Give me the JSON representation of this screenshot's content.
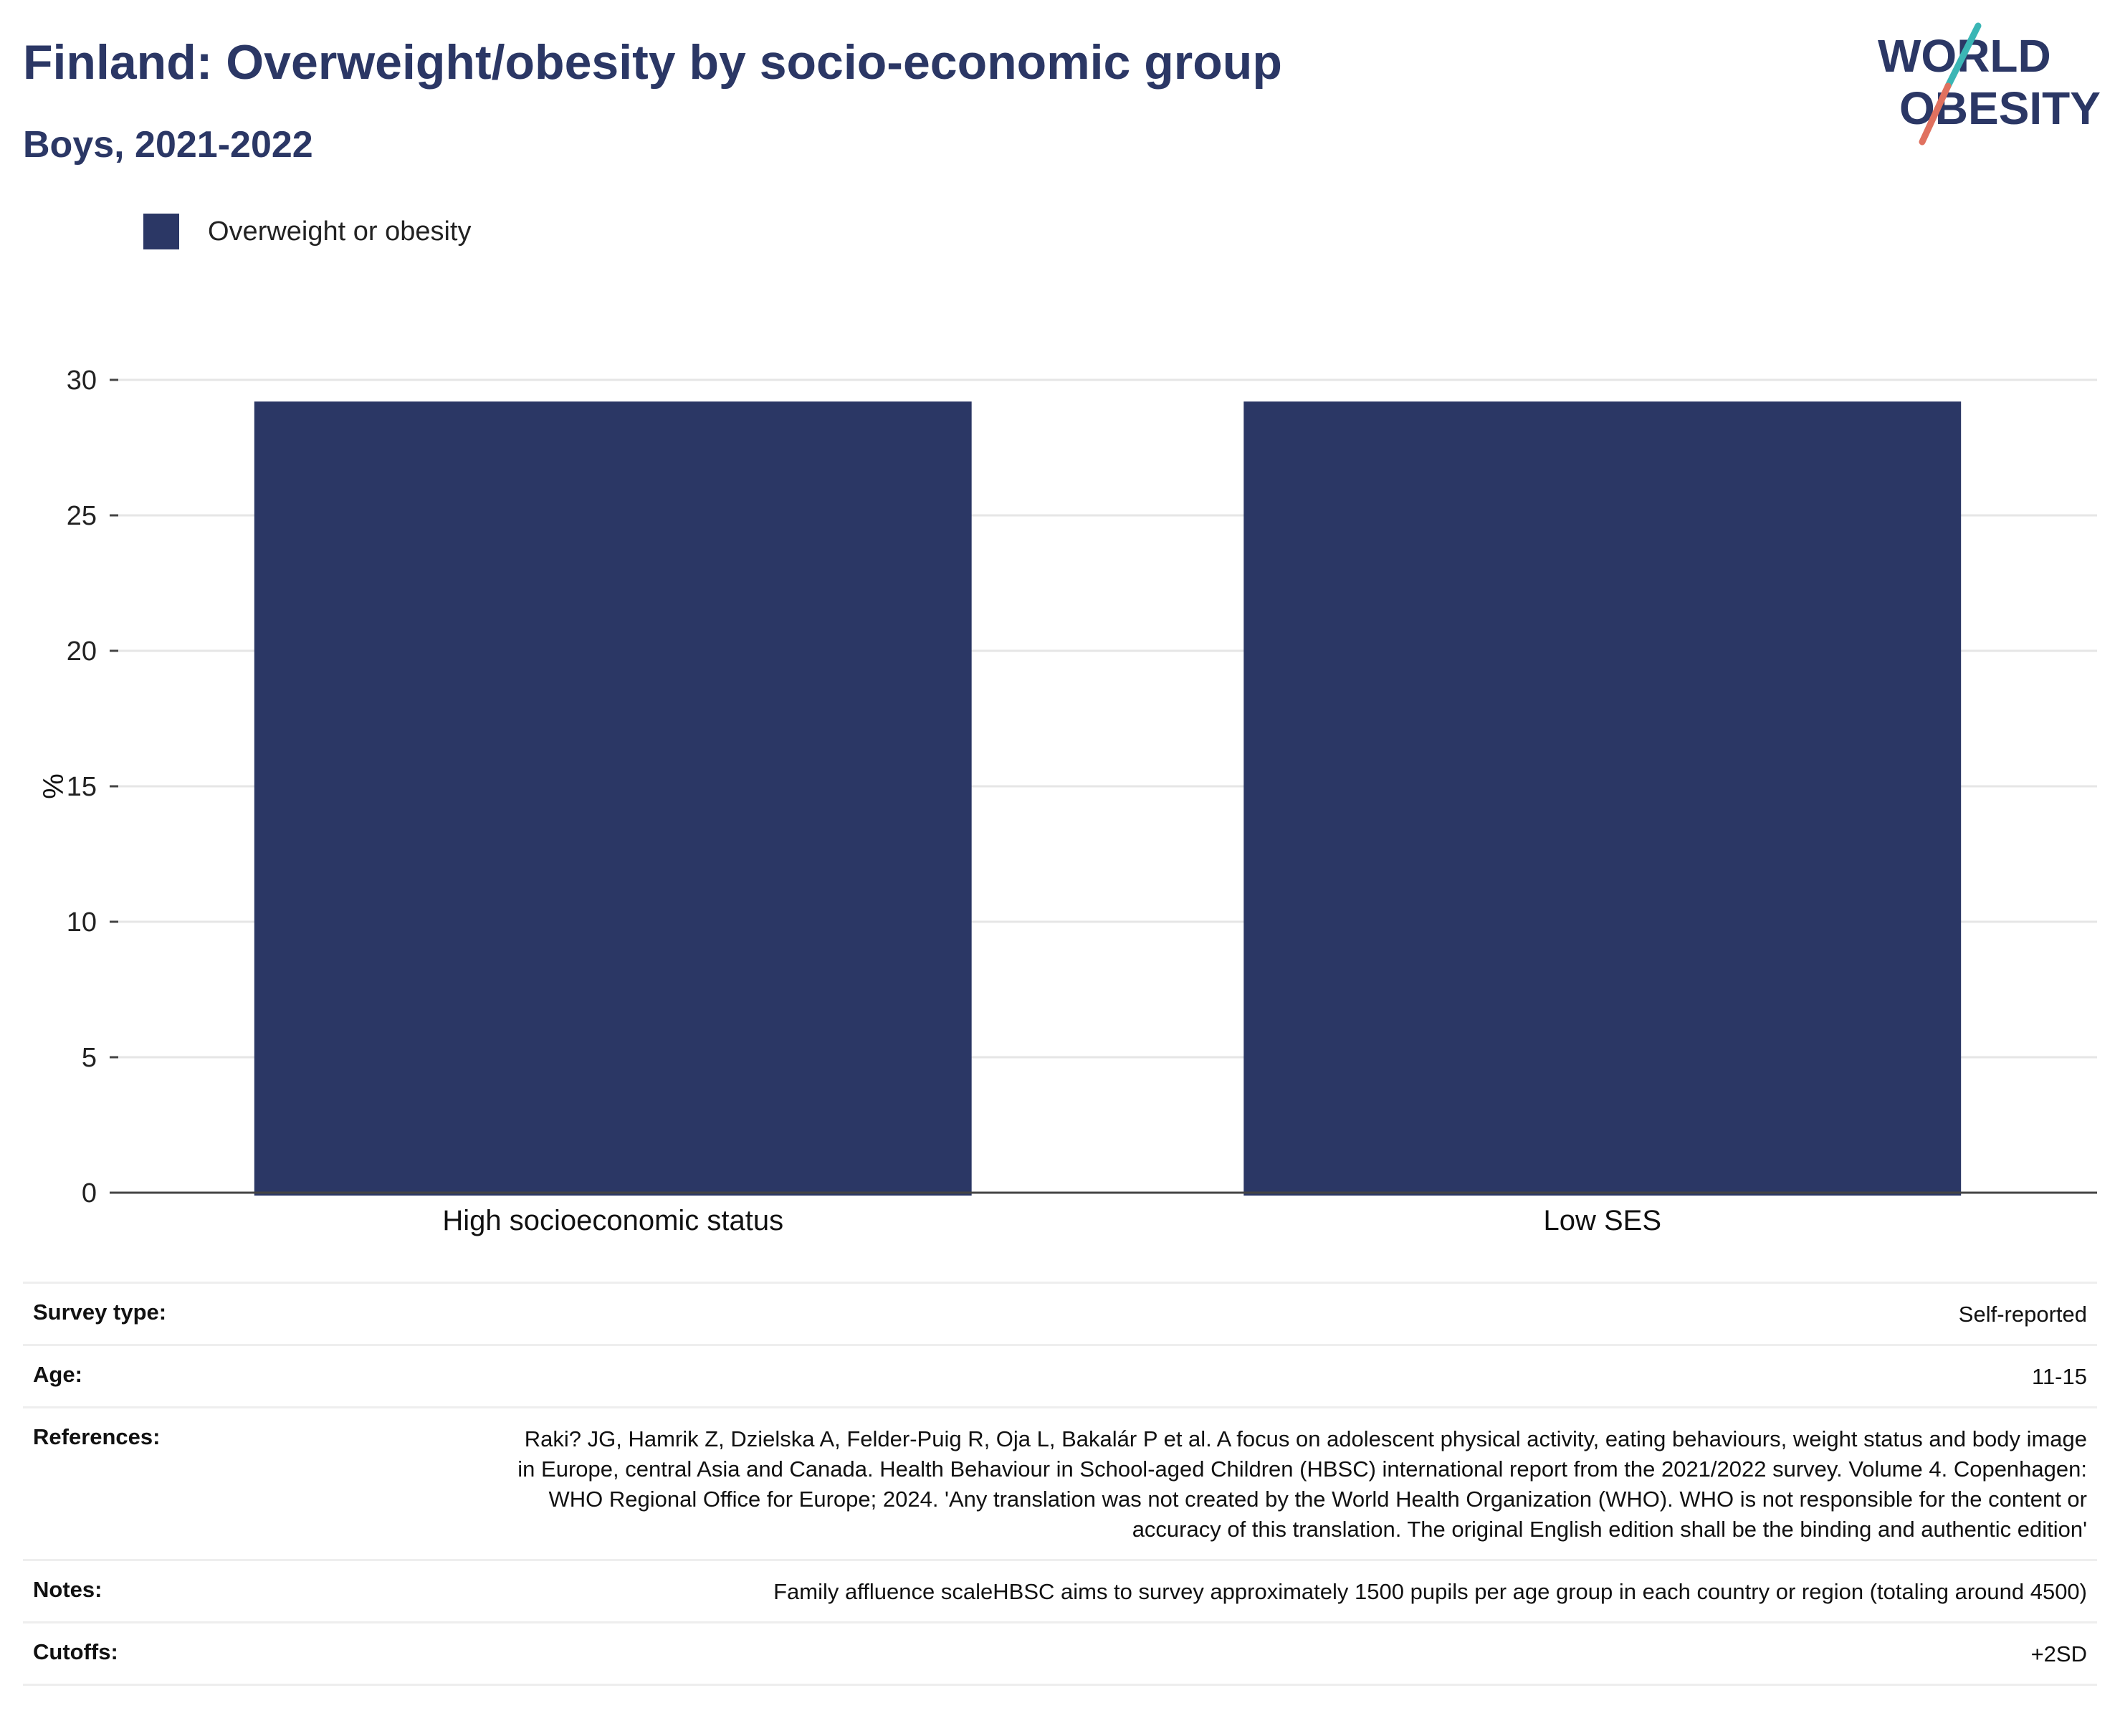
{
  "header": {
    "title": "Finland: Overweight/obesity by socio-economic group",
    "subtitle": "Boys, 2021-2022"
  },
  "logo": {
    "line1": "WORLD",
    "line2": "OBESITY"
  },
  "colors": {
    "bar": "#2b3765",
    "accent_teal": "#3bb6b5",
    "accent_coral": "#e0715f"
  },
  "chart_data": {
    "type": "bar",
    "categories": [
      "High socioeconomic status",
      "Low SES"
    ],
    "series": [
      {
        "name": "Overweight or obesity",
        "values": [
          29.2,
          29.2
        ]
      }
    ],
    "ylabel": "%",
    "xlabel": "",
    "ylim": [
      0,
      30
    ],
    "yticks": [
      0,
      5,
      10,
      15,
      20,
      25,
      30
    ],
    "grid": true,
    "legend_position": "top-left"
  },
  "info": [
    {
      "label": "Survey type:",
      "value": "Self-reported"
    },
    {
      "label": "Age:",
      "value": "11-15"
    },
    {
      "label": "References:",
      "value": "Raki? JG, Hamrik Z, Dzielska A, Felder-Puig R, Oja L, Bakalár P et al. A focus on adolescent physical activity, eating behaviours, weight status and body image in Europe, central Asia and Canada. Health Behaviour in School-aged Children (HBSC) international report from the 2021/2022 survey. Volume 4. Copenhagen: WHO Regional Office for Europe; 2024. 'Any translation was not created by the World Health Organization (WHO). WHO is not responsible for the content or accuracy of this translation. The original English edition shall be the binding and authentic edition'"
    },
    {
      "label": "Notes:",
      "value": "Family affluence scaleHBSC aims to survey approximately 1500 pupils per age group in each country or region (totaling around 4500)"
    },
    {
      "label": "Cutoffs:",
      "value": "+2SD"
    }
  ]
}
